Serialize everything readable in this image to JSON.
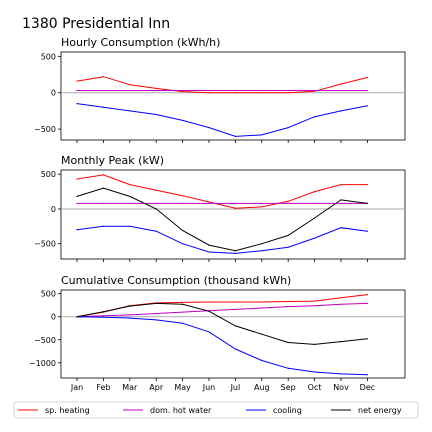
{
  "page_title": "1380 Presidential Inn",
  "legend": [
    {
      "label": "sp. heating",
      "color": "#ff0000"
    },
    {
      "label": "dom. hot water",
      "color": "#bf00bf"
    },
    {
      "label": "cooling",
      "color": "#0000ff"
    },
    {
      "label": "net energy",
      "color": "#000000"
    }
  ],
  "months": [
    "Jan",
    "Feb",
    "Mar",
    "Apr",
    "May",
    "Jun",
    "Jul",
    "Aug",
    "Sep",
    "Oct",
    "Nov",
    "Dec"
  ],
  "chart_data": [
    {
      "type": "line",
      "title": "Hourly Consumption (kWh/h)",
      "ylim": [
        -650,
        560
      ],
      "yticks": [
        500,
        0,
        -500
      ],
      "ytick_labels": [
        "500",
        "0",
        "−500"
      ],
      "zero_line": true,
      "series": [
        {
          "name": "sp. heating",
          "color": "#ff0000",
          "values": [
            160,
            220,
            110,
            60,
            15,
            0,
            0,
            0,
            0,
            20,
            120,
            210
          ]
        },
        {
          "name": "dom. hot water",
          "color": "#bf00bf",
          "values": [
            30,
            30,
            30,
            30,
            30,
            30,
            30,
            30,
            30,
            30,
            30,
            30
          ]
        },
        {
          "name": "cooling",
          "color": "#0000ff",
          "values": [
            -150,
            -200,
            -250,
            -300,
            -380,
            -480,
            -600,
            -580,
            -480,
            -330,
            -250,
            -180
          ]
        }
      ]
    },
    {
      "type": "line",
      "title": "Monthly Peak (kW)",
      "ylim": [
        -720,
        560
      ],
      "yticks": [
        500,
        0,
        -500
      ],
      "ytick_labels": [
        "500",
        "0",
        "−500"
      ],
      "zero_line": true,
      "series": [
        {
          "name": "sp. heating",
          "color": "#ff0000",
          "values": [
            430,
            490,
            350,
            270,
            190,
            100,
            10,
            30,
            110,
            250,
            350,
            350
          ]
        },
        {
          "name": "dom. hot water",
          "color": "#bf00bf",
          "values": [
            80,
            80,
            80,
            80,
            80,
            80,
            80,
            80,
            80,
            80,
            80,
            80
          ]
        },
        {
          "name": "cooling",
          "color": "#0000ff",
          "values": [
            -300,
            -250,
            -250,
            -320,
            -500,
            -620,
            -640,
            -600,
            -550,
            -420,
            -270,
            -320
          ]
        },
        {
          "name": "net energy",
          "color": "#000000",
          "values": [
            180,
            300,
            180,
            0,
            -310,
            -520,
            -600,
            -500,
            -380,
            -130,
            130,
            80
          ]
        }
      ]
    },
    {
      "type": "line",
      "title": "Cumulative Consumption (thousand kWh)",
      "ylim": [
        -1330,
        580
      ],
      "yticks": [
        500,
        0,
        -500,
        -1000
      ],
      "ytick_labels": [
        "500",
        "0",
        "−500",
        "−1000"
      ],
      "zero_line": true,
      "series": [
        {
          "name": "sp. heating",
          "color": "#ff0000",
          "values": [
            0,
            100,
            240,
            300,
            310,
            320,
            320,
            320,
            330,
            340,
            410,
            480
          ]
        },
        {
          "name": "dom. hot water",
          "color": "#bf00bf",
          "values": [
            0,
            20,
            40,
            70,
            100,
            130,
            160,
            190,
            220,
            240,
            270,
            290
          ]
        },
        {
          "name": "cooling",
          "color": "#0000ff",
          "values": [
            0,
            -10,
            -30,
            -70,
            -140,
            -330,
            -700,
            -950,
            -1120,
            -1200,
            -1240,
            -1260
          ]
        },
        {
          "name": "net energy",
          "color": "#000000",
          "values": [
            0,
            110,
            230,
            290,
            270,
            120,
            -200,
            -380,
            -560,
            -600,
            -540,
            -480
          ]
        }
      ]
    }
  ]
}
